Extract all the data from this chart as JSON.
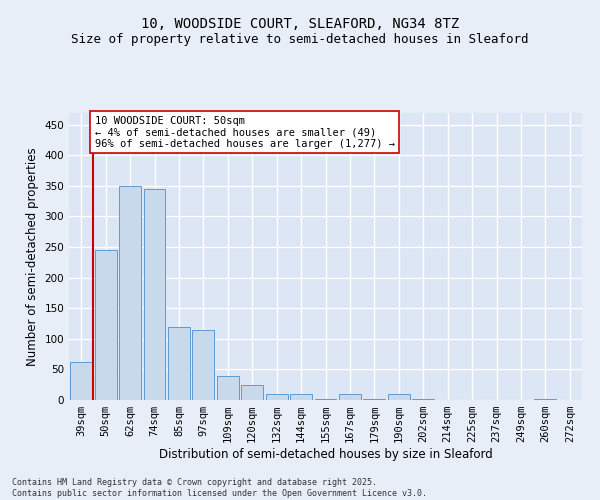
{
  "title1": "10, WOODSIDE COURT, SLEAFORD, NG34 8TZ",
  "title2": "Size of property relative to semi-detached houses in Sleaford",
  "xlabel": "Distribution of semi-detached houses by size in Sleaford",
  "ylabel": "Number of semi-detached properties",
  "categories": [
    "39sqm",
    "50sqm",
    "62sqm",
    "74sqm",
    "85sqm",
    "97sqm",
    "109sqm",
    "120sqm",
    "132sqm",
    "144sqm",
    "155sqm",
    "167sqm",
    "179sqm",
    "190sqm",
    "202sqm",
    "214sqm",
    "225sqm",
    "237sqm",
    "249sqm",
    "260sqm",
    "272sqm"
  ],
  "values": [
    62,
    245,
    350,
    345,
    120,
    115,
    40,
    25,
    10,
    10,
    1,
    10,
    1,
    10,
    1,
    0,
    0,
    0,
    0,
    1,
    0
  ],
  "bar_color": "#c9d9ec",
  "bar_edge_color": "#5b9bd5",
  "subject_index": 1,
  "subject_line_color": "#cc0000",
  "annotation_text": "10 WOODSIDE COURT: 50sqm\n← 4% of semi-detached houses are smaller (49)\n96% of semi-detached houses are larger (1,277) →",
  "annotation_box_color": "#ffffff",
  "annotation_box_edge": "#cc0000",
  "ylim": [
    0,
    470
  ],
  "yticks": [
    0,
    50,
    100,
    150,
    200,
    250,
    300,
    350,
    400,
    450
  ],
  "footnote": "Contains HM Land Registry data © Crown copyright and database right 2025.\nContains public sector information licensed under the Open Government Licence v3.0.",
  "background_color": "#e8eef8",
  "plot_background": "#dde6f4",
  "grid_color": "#ffffff",
  "title_fontsize": 10,
  "subtitle_fontsize": 9,
  "tick_fontsize": 7.5,
  "label_fontsize": 8.5,
  "annot_fontsize": 7.5
}
